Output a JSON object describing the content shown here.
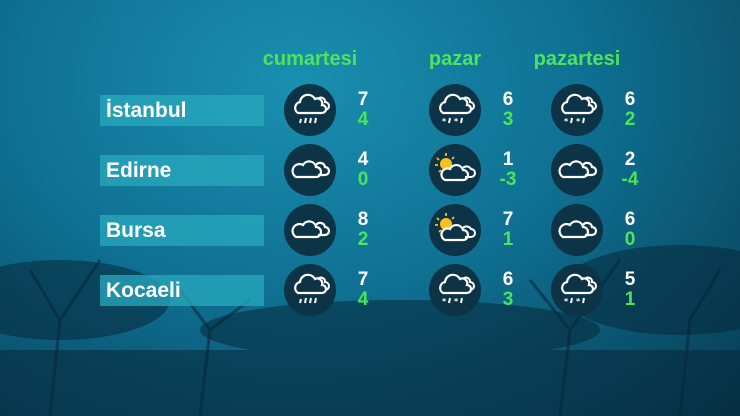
{
  "days": [
    "cumartesi",
    "pazar",
    "pazartesi"
  ],
  "colors": {
    "accent_green": "#4de35a",
    "label_bg": "#28aabe",
    "icon_bg": "#0c3346",
    "sun": "#f5c21b"
  },
  "cities": [
    {
      "name": "İstanbul",
      "forecast": [
        {
          "icon": "cloud-rain-icon",
          "high": "7",
          "low": "4"
        },
        {
          "icon": "cloud-sleet-icon",
          "high": "6",
          "low": "3"
        },
        {
          "icon": "cloud-sleet-icon",
          "high": "6",
          "low": "2"
        }
      ]
    },
    {
      "name": "Edirne",
      "forecast": [
        {
          "icon": "cloudy-icon",
          "high": "4",
          "low": "0"
        },
        {
          "icon": "partly-sunny-icon",
          "high": "1",
          "low": "-3"
        },
        {
          "icon": "cloudy-icon",
          "high": "2",
          "low": "-4"
        }
      ]
    },
    {
      "name": "Bursa",
      "forecast": [
        {
          "icon": "cloudy-icon",
          "high": "8",
          "low": "2"
        },
        {
          "icon": "partly-sunny-icon",
          "high": "7",
          "low": "1"
        },
        {
          "icon": "cloudy-icon",
          "high": "6",
          "low": "0"
        }
      ]
    },
    {
      "name": "Kocaeli",
      "forecast": [
        {
          "icon": "cloud-rain-icon",
          "high": "7",
          "low": "4"
        },
        {
          "icon": "cloud-sleet-icon",
          "high": "6",
          "low": "3"
        },
        {
          "icon": "cloud-sleet-icon",
          "high": "5",
          "low": "1"
        }
      ]
    }
  ]
}
